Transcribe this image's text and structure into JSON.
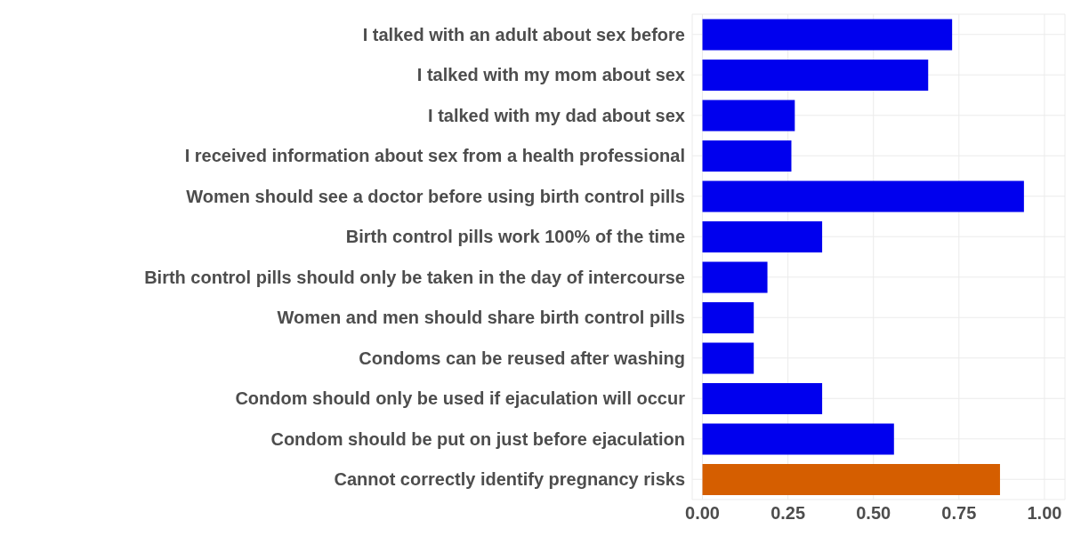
{
  "chart_data": {
    "type": "bar",
    "orientation": "horizontal",
    "categories": [
      "I talked with an adult about sex before",
      "I talked with my mom about sex",
      "I talked with my dad about sex",
      "I received information about sex from a health professional",
      "Women should see a doctor before using birth control pills",
      "Birth control pills  work 100% of the time",
      "Birth control pills should only be taken in the day of intercourse",
      "Women and men should share birth control pills",
      "Condoms can be reused after washing",
      "Condom should only be used if ejaculation will occur",
      "Condom should be put on just before ejaculation",
      "Cannot correctly identify pregnancy risks"
    ],
    "values": [
      0.73,
      0.66,
      0.27,
      0.26,
      0.94,
      0.35,
      0.19,
      0.15,
      0.15,
      0.35,
      0.56,
      0.87
    ],
    "colors": [
      "#0000ee",
      "#0000ee",
      "#0000ee",
      "#0000ee",
      "#0000ee",
      "#0000ee",
      "#0000ee",
      "#0000ee",
      "#0000ee",
      "#0000ee",
      "#0000ee",
      "#d55e00"
    ],
    "xlim": [
      -0.03,
      1.06
    ],
    "xticks": [
      {
        "value": 0,
        "label": "0.00"
      },
      {
        "value": 0.25,
        "label": "0.25"
      },
      {
        "value": 0.5,
        "label": "0.50"
      },
      {
        "value": 0.75,
        "label": "0.75"
      },
      {
        "value": 1,
        "label": "1.00"
      }
    ],
    "grid": true
  }
}
